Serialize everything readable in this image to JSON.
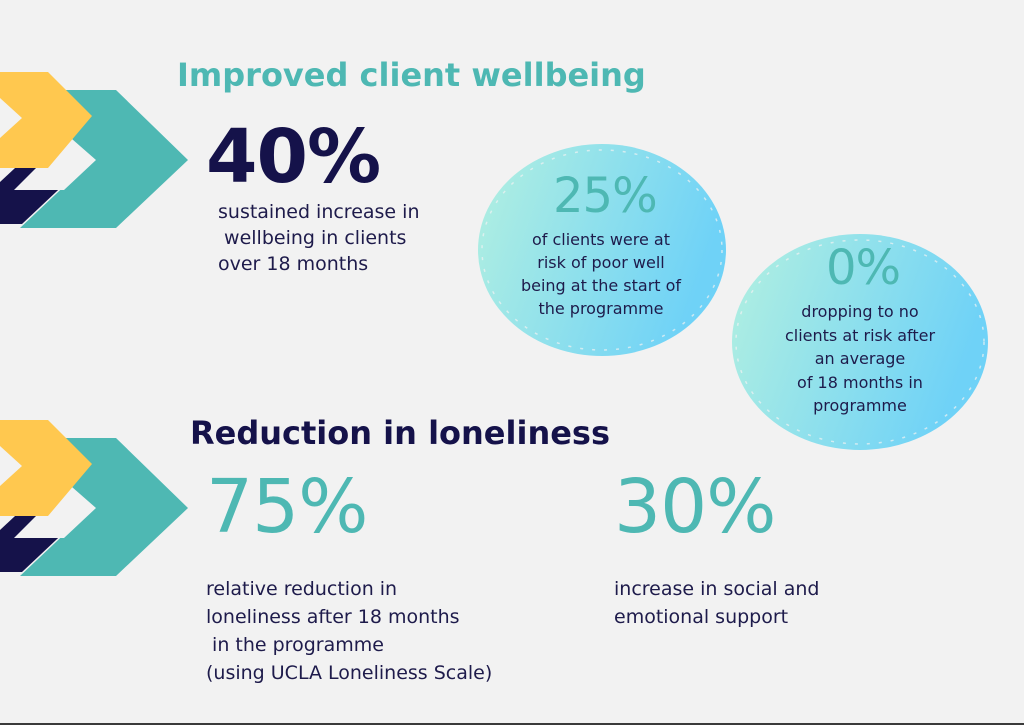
{
  "colors": {
    "teal": "#4eb8b3",
    "yellow": "#ffc84f",
    "navy": "#15124a",
    "bubble_from": "#b3f0e0",
    "bubble_to": "#6fd2f7"
  },
  "section1": {
    "title": "Improved client wellbeing",
    "stat_main": {
      "value": "40%",
      "description": "sustained increase in\n wellbeing in clients\nover 18 months"
    },
    "bubble_a": {
      "value": "25%",
      "description": "of clients were at\nrisk of poor well\nbeing at the start of\nthe programme"
    },
    "bubble_b": {
      "value": "0%",
      "description": "dropping to no\nclients at risk after\nan average\nof 18 months in\nprogramme"
    }
  },
  "section2": {
    "title": "Reduction in loneliness",
    "stat_left": {
      "value": "75%",
      "description": "relative reduction in\nloneliness after 18 months\n in the programme\n(using UCLA Loneliness Scale)"
    },
    "stat_right": {
      "value": "30%",
      "description": "increase in social and\nemotional support"
    }
  },
  "icons": {
    "chevron_top": "chevron-arrow-icon",
    "chevron_bottom": "chevron-arrow-icon"
  }
}
